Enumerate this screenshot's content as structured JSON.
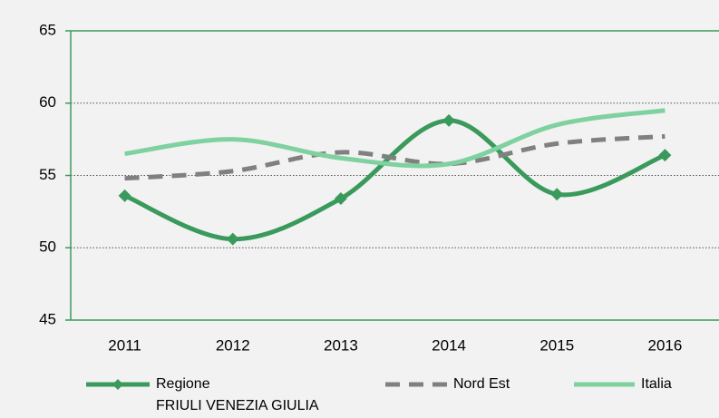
{
  "chart_data": {
    "type": "line",
    "categories": [
      "2011",
      "2012",
      "2013",
      "2014",
      "2015",
      "2016"
    ],
    "series": [
      {
        "name": "Regione\nFRIULI VENEZIA GIULIA",
        "color": "#3a9a5c",
        "marker": "diamond",
        "dashed": false,
        "values": [
          53.6,
          50.6,
          53.4,
          58.8,
          53.7,
          56.4
        ]
      },
      {
        "name": "Nord Est",
        "color": "#808080",
        "dashed": true,
        "values": [
          54.8,
          55.3,
          56.6,
          55.8,
          57.2,
          57.7
        ]
      },
      {
        "name": "Italia",
        "color": "#7fd1a0",
        "dashed": false,
        "values": [
          56.5,
          57.5,
          56.2,
          55.8,
          58.5,
          59.5
        ]
      }
    ],
    "ylim": [
      45,
      65
    ],
    "yticks": [
      45,
      50,
      55,
      60,
      65
    ],
    "grid": true
  }
}
